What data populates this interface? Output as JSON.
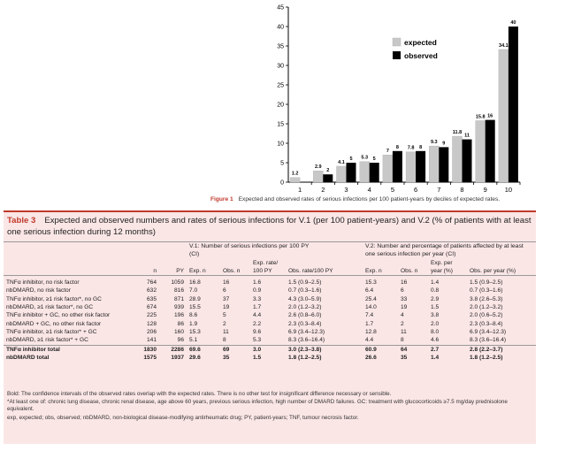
{
  "chart_data": {
    "type": "bar",
    "categories": [
      "1",
      "2",
      "3",
      "4",
      "5",
      "6",
      "7",
      "8",
      "9",
      "10"
    ],
    "series": [
      {
        "name": "expected",
        "color": "#c8c8c8",
        "values": [
          1.2,
          2.9,
          4.1,
          5.3,
          7,
          7.8,
          9.3,
          11.8,
          15.8,
          34.1
        ]
      },
      {
        "name": "observed",
        "color": "#000000",
        "values": [
          0,
          2,
          5,
          5,
          8,
          8,
          9,
          11,
          16,
          40
        ]
      }
    ],
    "data_labels": {
      "expected": [
        "1.2",
        "2.9",
        "4.1",
        "5.3",
        "7",
        "7.8",
        "9.3",
        "11.8",
        "15.8",
        "34.1"
      ],
      "observed": [
        "",
        "2",
        "5",
        "5",
        "8",
        "8",
        "9",
        "11",
        "16",
        "40"
      ]
    },
    "yticks": [
      "0",
      "5",
      "10",
      "15",
      "20",
      "25",
      "30",
      "35",
      "40",
      "45"
    ],
    "ylim": [
      0,
      45
    ],
    "legend_position": "top-right",
    "grid": false
  },
  "figure": {
    "label": "Figure 1",
    "caption": "Expected and observed rates of serious infections per 100 patient-years by deciles of expected rates."
  },
  "table": {
    "label": "Table 3",
    "title": "Expected and observed numbers and rates of serious infections for V.1 (per 100 patient-years) and V.2 (% of patients with at least one serious infection during 12 months)",
    "group_v1": "V.1: Number of serious infections per 100 PY (CI)",
    "group_v2": "V.2: Number and percentage of patients affected by at least one serious infection per year (CI)",
    "col_n": "n",
    "col_py": "PY",
    "col_exp_n": "Exp. n",
    "col_obs_n": "Obs. n",
    "col_exp_rate": "Exp. rate/ 100 PY",
    "col_obs_rate": "Obs. rate/100 PY",
    "col_exp_n2": "Exp. n",
    "col_obs_n2": "Obs. n",
    "col_exp_year": "Exp. per year (%)",
    "col_obs_year": "Obs. per year (%)",
    "rows": [
      {
        "label": "TNFα inhibitor, no risk factor",
        "n": "764",
        "py": "1059",
        "exp_n": "16.8",
        "obs_n": "16",
        "exp_rate": "1.6",
        "obs_rate": "1.5 (0.9–2.5)",
        "exp_n2": "15.3",
        "obs_n2": "16",
        "exp_year": "1.4",
        "obs_year": "1.5 (0.9–2.5)"
      },
      {
        "label": "nbDMARD, no risk factor",
        "n": "632",
        "py": "816",
        "exp_n": "7.0",
        "obs_n": "6",
        "exp_rate": "0.9",
        "obs_rate": "0.7 (0.3–1.6)",
        "exp_n2": "6.4",
        "obs_n2": "6",
        "exp_year": "0.8",
        "obs_year": "0.7 (0.3–1.6)"
      },
      {
        "label": "TNFα inhibitor, ≥1 risk factor*, no GC",
        "n": "635",
        "py": "871",
        "exp_n": "28.9",
        "obs_n": "37",
        "exp_rate": "3.3",
        "obs_rate": "4.3 (3.0–5.9)",
        "exp_n2": "25.4",
        "obs_n2": "33",
        "exp_year": "2.9",
        "obs_year": "3.8 (2.6–5.3)"
      },
      {
        "label": "nbDMARD, ≥1 risk factor*, no GC",
        "n": "674",
        "py": "939",
        "exp_n": "15.5",
        "obs_n": "19",
        "exp_rate": "1.7",
        "obs_rate": "2.0 (1.2–3.2)",
        "exp_n2": "14.0",
        "obs_n2": "19",
        "exp_year": "1.5",
        "obs_year": "2.0 (1.2–3.2)"
      },
      {
        "label": "TNFα inhibitor + GC, no other risk factor",
        "n": "225",
        "py": "196",
        "exp_n": "8.6",
        "obs_n": "5",
        "exp_rate": "4.4",
        "obs_rate": "2.6 (0.8–6.0)",
        "exp_n2": "7.4",
        "obs_n2": "4",
        "exp_year": "3.8",
        "obs_year": "2.0 (0.6–5.2)"
      },
      {
        "label": "nbDMARD + GC, no other risk factor",
        "n": "128",
        "py": "86",
        "exp_n": "1.9",
        "obs_n": "2",
        "exp_rate": "2.2",
        "obs_rate": "2.3 (0.3–8.4)",
        "exp_n2": "1.7",
        "obs_n2": "2",
        "exp_year": "2.0",
        "obs_year": "2.3 (0.3–8.4)"
      },
      {
        "label": "TNFα inhibitor, ≥1 risk factor* + GC",
        "n": "206",
        "py": "160",
        "exp_n": "15.3",
        "obs_n": "11",
        "exp_rate": "9.6",
        "obs_rate": "6.9 (3.4–12.3)",
        "exp_n2": "12.8",
        "obs_n2": "11",
        "exp_year": "8.0",
        "obs_year": "6.9 (3.4–12.3)"
      },
      {
        "label": "nbDMARD, ≥1 risk factor* + GC",
        "n": "141",
        "py": "96",
        "exp_n": "5.1",
        "obs_n": "8",
        "exp_rate": "5.3",
        "obs_rate": "8.3 (3.6–16.4)",
        "exp_n2": "4.4",
        "obs_n2": "8",
        "exp_year": "4.6",
        "obs_year": "8.3 (3.6–16.4)"
      }
    ],
    "totals": [
      {
        "label": "TNFα inhibitor total",
        "n": "1830",
        "py": "2286",
        "exp_n": "69.6",
        "obs_n": "69",
        "exp_rate": "3.0",
        "obs_rate": "3.0 (2.3–3.8)",
        "exp_n2": "60.9",
        "obs_n2": "64",
        "exp_year": "2.7",
        "obs_year": "2.8 (2.2–3.7)"
      },
      {
        "label": "nbDMARD total",
        "n": "1575",
        "py": "1937",
        "exp_n": "29.6",
        "obs_n": "35",
        "exp_rate": "1.5",
        "obs_rate": "1.8 (1.2–2.5)",
        "exp_n2": "26.6",
        "obs_n2": "35",
        "exp_year": "1.4",
        "obs_year": "1.8 (1.2–2.5)"
      }
    ],
    "footnote_bold": "Bold: The confidence intervals of the observed rates overlap with the expected rates. There is no other test for insignificant difference necessary or sensible.",
    "footnote_star": "*At least one of: chronic lung disease, chronic renal disease, age above 60 years, previous serious infection, high number of DMARD failures. GC: treatment with glucocorticoids ≥7.5 mg/day prednisolone equivalent.",
    "footnote_abbr": "exp, expected; obs, observed; nbDMARD, non-biological disease-modifying antirheumatic drug; PY, patient-years; TNF, tumour necrosis factor."
  }
}
